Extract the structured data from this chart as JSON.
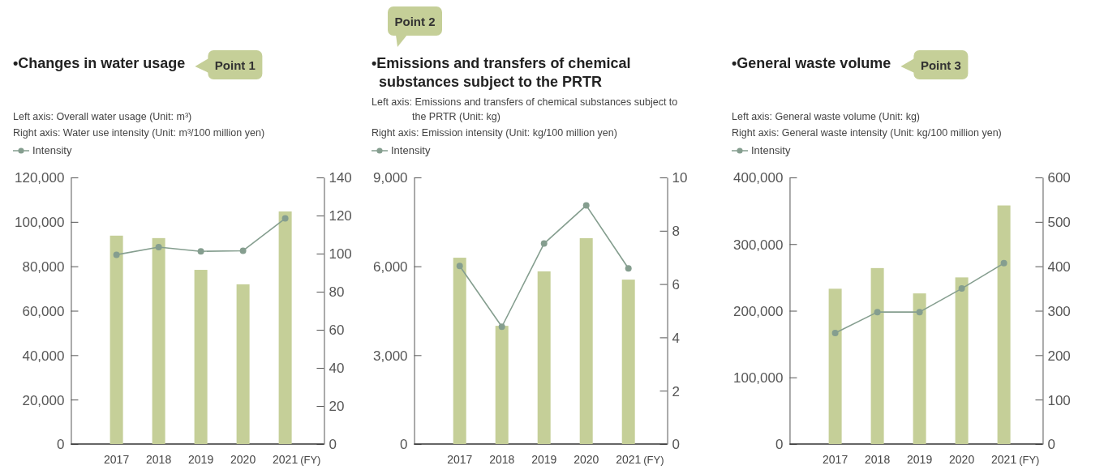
{
  "chart_data": [
    {
      "type": "bar",
      "title": "•Changes in water usage",
      "xlabel": "(FY)",
      "annotations": [
        "Point 1",
        "Left axis: Overall water usage (Unit: m³)",
        "Right axis: Water use intensity (Unit: m³/100 million yen)"
      ],
      "categories": [
        "2017",
        "2018",
        "2019",
        "2020",
        "2021"
      ],
      "series": [
        {
          "color": "#c5cf98",
          "values": [
            93800,
            92700,
            78400,
            71900,
            104700
          ]
        },
        {
          "type": "line",
          "name": "Intensity",
          "color": "#859e8f",
          "axis": "y2",
          "values": [
            99.4,
            103.4,
            101.2,
            101.5,
            118.5
          ]
        }
      ],
      "ylim": [
        0,
        120000
      ],
      "yticks": [
        {
          "value": 0,
          "label": "0"
        },
        {
          "value": 20000,
          "label": "20,000"
        },
        {
          "value": 40000,
          "label": "40,000"
        },
        {
          "value": 60000,
          "label": "60,000"
        },
        {
          "value": 80000,
          "label": "80,000"
        },
        {
          "value": 100000,
          "label": "100,000"
        },
        {
          "value": 120000,
          "label": "120,000"
        }
      ],
      "y2lim": [
        0,
        140
      ],
      "y2ticks": [
        0,
        20,
        40,
        60,
        80,
        100,
        120,
        140
      ],
      "legend": "top left",
      "marker": "circle"
    },
    {
      "type": "bar",
      "title": "•Emissions and transfers of chemical substances subject to the PRTR",
      "xlabel": "(FY)",
      "annotations": [
        "Point 2",
        "Left axis: Emissions and transfers of chemical substances subject to the PRTR (Unit: kg)",
        "Right axis: Emission intensity (Unit: kg/100 million yen)"
      ],
      "categories": [
        "2017",
        "2018",
        "2019",
        "2020",
        "2021"
      ],
      "series": [
        {
          "color": "#c5cf98",
          "values": [
            6290,
            3990,
            5830,
            6950,
            5550
          ]
        },
        {
          "type": "line",
          "name": "Intensity",
          "color": "#859e8f",
          "axis": "y2",
          "values": [
            6.68,
            4.4,
            7.52,
            8.95,
            6.59
          ]
        }
      ],
      "ylim": [
        0,
        9000
      ],
      "yticks": [
        {
          "value": 0,
          "label": "0"
        },
        {
          "value": 3000,
          "label": "3,000"
        },
        {
          "value": 6000,
          "label": "6,000"
        },
        {
          "value": 9000,
          "label": "9,000"
        }
      ],
      "y2lim": [
        0,
        10
      ],
      "y2ticks": [
        0,
        2,
        4,
        6,
        8,
        10
      ],
      "legend": "top left",
      "marker": "circle"
    },
    {
      "type": "bar",
      "title": "•General waste volume",
      "xlabel": "(FY)",
      "annotations": [
        "Point 3",
        "Left axis: General waste volume (Unit: kg)",
        "Right axis: General waste intensity (Unit: kg/100 million yen)"
      ],
      "categories": [
        "2017",
        "2018",
        "2019",
        "2020",
        "2021"
      ],
      "series": [
        {
          "color": "#c5cf98",
          "values": [
            233000,
            264000,
            226000,
            250000,
            358000
          ]
        },
        {
          "type": "line",
          "name": "Intensity",
          "color": "#859e8f",
          "axis": "y2",
          "values": [
            250,
            297,
            297,
            350,
            407
          ]
        }
      ],
      "ylim": [
        0,
        400000
      ],
      "yticks": [
        {
          "value": 0,
          "label": "0"
        },
        {
          "value": 100000,
          "label": "100,000"
        },
        {
          "value": 200000,
          "label": "200,000"
        },
        {
          "value": 300000,
          "label": "300,000"
        },
        {
          "value": 400000,
          "label": "400,000"
        }
      ],
      "y2lim": [
        0,
        600
      ],
      "y2ticks": [
        0,
        100,
        200,
        300,
        400,
        500,
        600
      ],
      "legend": "top left",
      "marker": "circle"
    }
  ]
}
